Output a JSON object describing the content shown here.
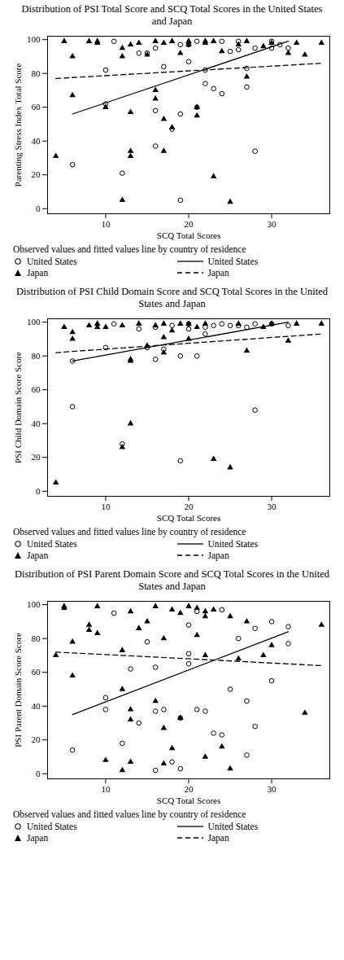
{
  "chart_data": [
    {
      "type": "scatter",
      "title": "Distribution of PSI Total Score and SCQ Total Scores in the United States and Japan",
      "x_label": "SCQ Total Scores",
      "y_label": "Parenting Stress Index Total Score",
      "legend_title": "Observed values and fitted values line by country of residence",
      "xlim": [
        3,
        37
      ],
      "xticks": [
        10,
        20,
        30
      ],
      "ylim": [
        -3,
        102
      ],
      "yticks": [
        0,
        20,
        40,
        60,
        80,
        100
      ],
      "series": [
        {
          "name": "United States",
          "type": "scatter",
          "marker": "circle",
          "color": "#000000",
          "x": [
            6,
            10,
            10,
            12,
            11,
            14,
            15,
            16,
            16,
            16,
            17,
            18,
            19,
            19,
            20,
            20,
            21,
            22,
            22,
            23,
            24,
            25,
            26,
            27,
            27,
            28,
            28,
            30,
            30,
            31,
            32,
            21,
            19,
            24,
            26
          ],
          "values": [
            26,
            82,
            62,
            21,
            99,
            92,
            92,
            37,
            58,
            95,
            84,
            47,
            56,
            5,
            87,
            97,
            60,
            74,
            82,
            71,
            68,
            93,
            94,
            72,
            83,
            34,
            95,
            95,
            99,
            97,
            95,
            99,
            97,
            99,
            99
          ]
        },
        {
          "name": "United States",
          "type": "line",
          "line_style": "solid",
          "color": "#000000",
          "x": [
            6,
            32
          ],
          "values": [
            56,
            99
          ]
        },
        {
          "name": "Japan",
          "type": "scatter",
          "marker": "triangle",
          "color": "#000000",
          "x": [
            4,
            5,
            6,
            6,
            8,
            9,
            9,
            10,
            12,
            12,
            12,
            13,
            13,
            13,
            13,
            14,
            15,
            16,
            16,
            16,
            17,
            17,
            17,
            18,
            18,
            19,
            20,
            20,
            21,
            21,
            22,
            22,
            23,
            23,
            24,
            25,
            26,
            27,
            27,
            29,
            30,
            32,
            33,
            34,
            36
          ],
          "values": [
            31,
            99,
            90,
            67,
            99,
            99,
            98,
            60,
            90,
            95,
            5,
            57,
            34,
            31,
            97,
            98,
            91,
            70,
            65,
            99,
            98,
            53,
            34,
            48,
            99,
            92,
            99,
            97,
            55,
            60,
            99,
            98,
            99,
            19,
            93,
            4,
            97,
            78,
            99,
            96,
            98,
            92,
            98,
            91,
            98
          ]
        },
        {
          "name": "Japan",
          "type": "line",
          "line_style": "dashed",
          "color": "#000000",
          "x": [
            4,
            36
          ],
          "values": [
            77,
            86
          ]
        }
      ]
    },
    {
      "type": "scatter",
      "title": "Distribution of PSI Child Domain Score and SCQ Total Scores in the United States and Japan",
      "x_label": "SCQ Total Scores",
      "y_label": "PSI Child Domain Score Score",
      "legend_title": "Observed values and fitted values line by country of residence",
      "xlim": [
        3,
        37
      ],
      "xticks": [
        10,
        20,
        30
      ],
      "ylim": [
        -3,
        102
      ],
      "yticks": [
        0,
        20,
        40,
        60,
        80,
        100
      ],
      "series": [
        {
          "name": "United States",
          "type": "scatter",
          "marker": "circle",
          "color": "#000000",
          "x": [
            6,
            6,
            10,
            11,
            12,
            14,
            15,
            16,
            17,
            18,
            19,
            19,
            20,
            21,
            22,
            22,
            23,
            24,
            25,
            26,
            27,
            28,
            28,
            30,
            32,
            20,
            16
          ],
          "values": [
            50,
            77,
            85,
            99,
            28,
            96,
            85,
            78,
            84,
            98,
            18,
            80,
            96,
            80,
            93,
            97,
            98,
            99,
            98,
            98,
            97,
            48,
            99,
            99,
            98,
            99,
            97
          ]
        },
        {
          "name": "United States",
          "type": "line",
          "line_style": "solid",
          "color": "#000000",
          "x": [
            6,
            32
          ],
          "values": [
            77,
            100
          ]
        },
        {
          "name": "Japan",
          "type": "scatter",
          "marker": "triangle",
          "color": "#000000",
          "x": [
            4,
            5,
            6,
            6,
            8,
            9,
            9,
            10,
            12,
            13,
            13,
            13,
            14,
            15,
            16,
            17,
            17,
            18,
            19,
            20,
            21,
            22,
            23,
            25,
            26,
            27,
            29,
            30,
            32,
            33,
            36,
            17,
            12,
            20
          ],
          "values": [
            5,
            97,
            90,
            94,
            98,
            99,
            97,
            97,
            26,
            40,
            77,
            78,
            99,
            86,
            98,
            91,
            82,
            95,
            99,
            99,
            97,
            99,
            19,
            14,
            99,
            83,
            97,
            99,
            89,
            99,
            99,
            99,
            98,
            90
          ]
        },
        {
          "name": "Japan",
          "type": "line",
          "line_style": "dashed",
          "color": "#000000",
          "x": [
            4,
            36
          ],
          "values": [
            82,
            93
          ]
        }
      ]
    },
    {
      "type": "scatter",
      "title": "Distribution of PSI Parent Domain Score and SCQ Total Scores in the United States and Japan",
      "x_label": "SCQ Total Scores",
      "y_label": "PSI Parent Domain Score Score",
      "legend_title": "Observed values and fitted values line by country of residence",
      "xlim": [
        3,
        37
      ],
      "xticks": [
        10,
        20,
        30
      ],
      "ylim": [
        -3,
        102
      ],
      "yticks": [
        0,
        20,
        40,
        60,
        80,
        100
      ],
      "series": [
        {
          "name": "United States",
          "type": "scatter",
          "marker": "circle",
          "color": "#000000",
          "x": [
            6,
            10,
            10,
            11,
            12,
            13,
            14,
            15,
            16,
            16,
            16,
            17,
            18,
            19,
            19,
            20,
            20,
            21,
            21,
            22,
            23,
            24,
            24,
            25,
            26,
            27,
            27,
            28,
            28,
            30,
            30,
            32,
            32,
            20
          ],
          "values": [
            14,
            45,
            38,
            95,
            18,
            62,
            30,
            78,
            37,
            63,
            2,
            38,
            7,
            33,
            3,
            88,
            65,
            96,
            38,
            37,
            24,
            23,
            97,
            50,
            80,
            43,
            11,
            28,
            86,
            90,
            55,
            77,
            87,
            71
          ]
        },
        {
          "name": "United States",
          "type": "line",
          "line_style": "solid",
          "color": "#000000",
          "x": [
            6,
            32
          ],
          "values": [
            35,
            84
          ]
        },
        {
          "name": "Japan",
          "type": "scatter",
          "marker": "triangle",
          "color": "#000000",
          "x": [
            4,
            5,
            5,
            6,
            6,
            8,
            8,
            9,
            9,
            10,
            12,
            12,
            12,
            13,
            13,
            13,
            13,
            14,
            15,
            16,
            16,
            17,
            17,
            17,
            18,
            18,
            19,
            20,
            21,
            22,
            22,
            22,
            22,
            23,
            24,
            25,
            25,
            26,
            27,
            29,
            30,
            34,
            36,
            19,
            21
          ],
          "values": [
            70,
            99,
            98,
            78,
            58,
            88,
            85,
            99,
            83,
            8,
            73,
            50,
            2,
            96,
            38,
            32,
            7,
            86,
            90,
            43,
            99,
            27,
            6,
            80,
            15,
            97,
            95,
            99,
            98,
            70,
            96,
            93,
            10,
            97,
            16,
            93,
            3,
            68,
            90,
            70,
            76,
            36,
            88,
            33,
            82
          ]
        },
        {
          "name": "Japan",
          "type": "line",
          "line_style": "dashed",
          "color": "#000000",
          "x": [
            4,
            36
          ],
          "values": [
            72,
            64
          ]
        }
      ]
    }
  ]
}
